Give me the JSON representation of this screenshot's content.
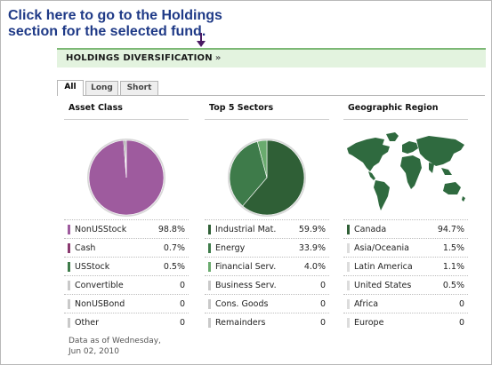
{
  "callout": {
    "line1": "Click here to go to the Holdings",
    "line2": "section for the selected fund."
  },
  "header": {
    "title": "HOLDINGS DIVERSIFICATION",
    "chevron": "»"
  },
  "tabs": [
    {
      "label": "All",
      "active": true
    },
    {
      "label": "Long",
      "active": false
    },
    {
      "label": "Short",
      "active": false
    }
  ],
  "colors": {
    "asset_primary": "#9e5b9e",
    "asset_secondary": "#c9c9c9",
    "sector_dark": "#2f5f36",
    "sector_mid": "#3e7b4a",
    "sector_light": "#6aab6e",
    "sector_neutral": "#c9c9c9",
    "map_land": "#2f6a3f",
    "map_highlight": "#2f6a3f"
  },
  "asset_class": {
    "title": "Asset Class",
    "items": [
      {
        "label": "NonUSStock",
        "value": "98.8%",
        "swatch": "#9e5b9e"
      },
      {
        "label": "Cash",
        "value": "0.7%",
        "swatch": "#8a3a70"
      },
      {
        "label": "USStock",
        "value": "0.5%",
        "swatch": "#3e7b4a"
      },
      {
        "label": "Convertible",
        "value": "0",
        "swatch": "#c9c9c9"
      },
      {
        "label": "NonUSBond",
        "value": "0",
        "swatch": "#c9c9c9"
      },
      {
        "label": "Other",
        "value": "0",
        "swatch": "#c9c9c9"
      }
    ]
  },
  "top_sectors": {
    "title": "Top 5 Sectors",
    "items": [
      {
        "label": "Industrial Mat.",
        "value": "59.9%",
        "swatch": "#2f5f36"
      },
      {
        "label": "Energy",
        "value": "33.9%",
        "swatch": "#3e7b4a"
      },
      {
        "label": "Financial Serv.",
        "value": "4.0%",
        "swatch": "#6aab6e"
      },
      {
        "label": "Business Serv.",
        "value": "0",
        "swatch": "#c9c9c9"
      },
      {
        "label": "Cons. Goods",
        "value": "0",
        "swatch": "#c9c9c9"
      },
      {
        "label": "Remainders",
        "value": "0",
        "swatch": "#c9c9c9"
      }
    ]
  },
  "geo_region": {
    "title": "Geographic Region",
    "map_icon": "world-map-icon",
    "items": [
      {
        "label": "Canada",
        "value": "94.7%",
        "swatch": "#2f5f36"
      },
      {
        "label": "Asia/Oceania",
        "value": "1.5%",
        "swatch": "#dcdcdc"
      },
      {
        "label": "Latin America",
        "value": "1.1%",
        "swatch": "#dcdcdc"
      },
      {
        "label": "United States",
        "value": "0.5%",
        "swatch": "#dcdcdc"
      },
      {
        "label": "Africa",
        "value": "0",
        "swatch": "#dcdcdc"
      },
      {
        "label": "Europe",
        "value": "0",
        "swatch": "#dcdcdc"
      }
    ]
  },
  "as_of": {
    "line1": "Data as of Wednesday,",
    "line2": "Jun 02, 2010"
  },
  "chart_data": [
    {
      "type": "pie",
      "categories": [
        "NonUSStock",
        "Cash",
        "USStock",
        "Convertible",
        "NonUSBond",
        "Other"
      ],
      "values": [
        98.8,
        0.7,
        0.5,
        0,
        0,
        0
      ]
    },
    {
      "type": "pie",
      "categories": [
        "Industrial Mat.",
        "Energy",
        "Financial Serv.",
        "Business Serv.",
        "Cons. Goods",
        "Remainders"
      ],
      "values": [
        59.9,
        33.9,
        4.0,
        0,
        0,
        0
      ]
    }
  ]
}
